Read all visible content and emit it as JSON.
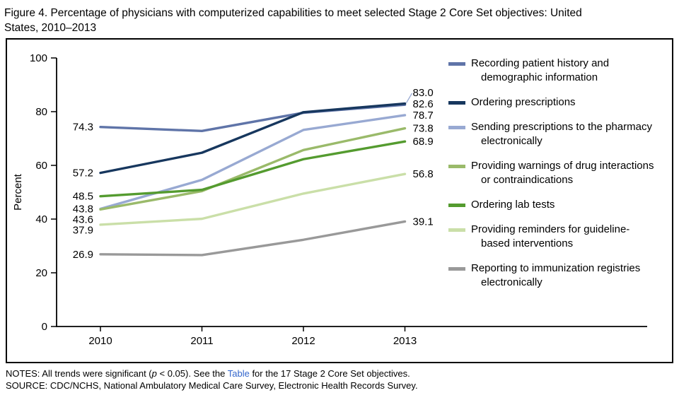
{
  "chart_data": {
    "type": "line",
    "title": "Figure 4. Percentage of physicians with computerized capabilities to meet selected Stage 2 Core Set objectives: United States, 2010–2013",
    "x": [
      "2010",
      "2011",
      "2012",
      "2013"
    ],
    "xlabel": "",
    "ylabel": "Percent",
    "ylim": [
      0,
      100
    ],
    "yticks": [
      0,
      20,
      40,
      60,
      80,
      100
    ],
    "grid": false,
    "legend_position": "right",
    "series": [
      {
        "name": "Recording patient history and demographic information",
        "color": "#5f74a8",
        "values": [
          74.3,
          72.8,
          79.6,
          82.6
        ]
      },
      {
        "name": "Ordering prescriptions",
        "color": "#17375e",
        "values": [
          57.2,
          64.7,
          79.8,
          83.0
        ]
      },
      {
        "name": "Sending prescriptions to the pharmacy electronically",
        "color": "#98a9d2",
        "values": [
          43.8,
          54.6,
          73.2,
          78.7
        ]
      },
      {
        "name": "Providing warnings of drug interactions or contraindications",
        "color": "#9aba6a",
        "values": [
          43.6,
          50.4,
          65.7,
          73.8
        ]
      },
      {
        "name": "Ordering lab tests",
        "color": "#549b2f",
        "values": [
          48.5,
          50.9,
          62.3,
          68.9
        ]
      },
      {
        "name": "Providing reminders for guideline-based interventions",
        "color": "#cadfa8",
        "values": [
          37.9,
          40.1,
          49.5,
          56.8
        ]
      },
      {
        "name": "Reporting to immunization registries electronically",
        "color": "#999999",
        "values": [
          26.9,
          26.6,
          32.3,
          39.1
        ]
      }
    ]
  },
  "notes": {
    "prefix": "NOTES: All trends were significant (",
    "p_var": "p",
    "mid": " < 0.05). See the ",
    "link_label": "Table",
    "suffix": " for the 17 Stage 2 Core Set objectives."
  },
  "source": "SOURCE: CDC/NCHS, National Ambulatory Medical Care Survey, Electronic Health Records Survey.",
  "colors": {
    "link": "#3366cc"
  }
}
